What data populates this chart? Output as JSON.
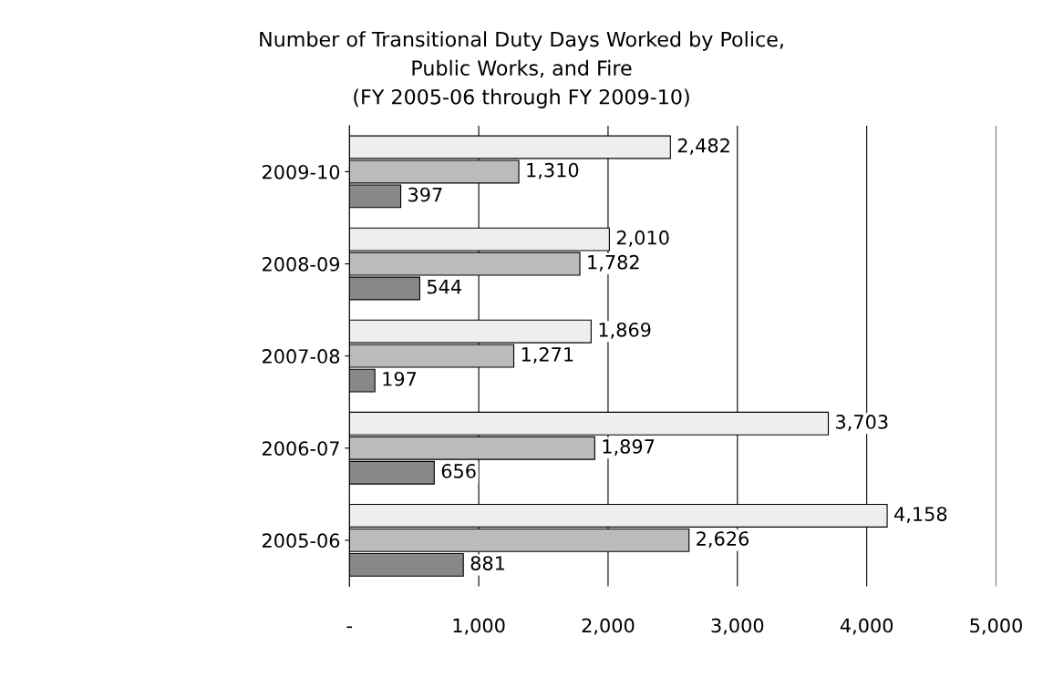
{
  "chart_data": {
    "type": "bar",
    "orientation": "horizontal",
    "title": "Number of Transitional Duty Days Worked by Police,\nPublic Works, and Fire\n(FY 2005-06 through FY 2009-10)",
    "categories": [
      "2009-10",
      "2008-09",
      "2007-08",
      "2006-07",
      "2005-06"
    ],
    "series": [
      {
        "color": "#eeeeee",
        "values": [
          2482,
          2010,
          1869,
          3703,
          4158
        ],
        "value_labels": [
          "2,482",
          "2,010",
          "1,869",
          "3,703",
          "4,158"
        ]
      },
      {
        "color": "#bbbbbb",
        "values": [
          1310,
          1782,
          1271,
          1897,
          2626
        ],
        "value_labels": [
          "1,310",
          "1,782",
          "1,271",
          "1,897",
          "2,626"
        ]
      },
      {
        "color": "#888888",
        "values": [
          397,
          544,
          197,
          656,
          881
        ],
        "value_labels": [
          "397",
          "544",
          "197",
          "656",
          "881"
        ]
      }
    ],
    "xlim": [
      0,
      5000
    ],
    "xticks": [
      {
        "value": 0,
        "label": "-"
      },
      {
        "value": 1000,
        "label": "1,000"
      },
      {
        "value": 2000,
        "label": "2,000"
      },
      {
        "value": 3000,
        "label": "3,000"
      },
      {
        "value": 4000,
        "label": "4,000"
      },
      {
        "value": 5000,
        "label": "5,000"
      }
    ],
    "grid": "x",
    "legend": false
  }
}
